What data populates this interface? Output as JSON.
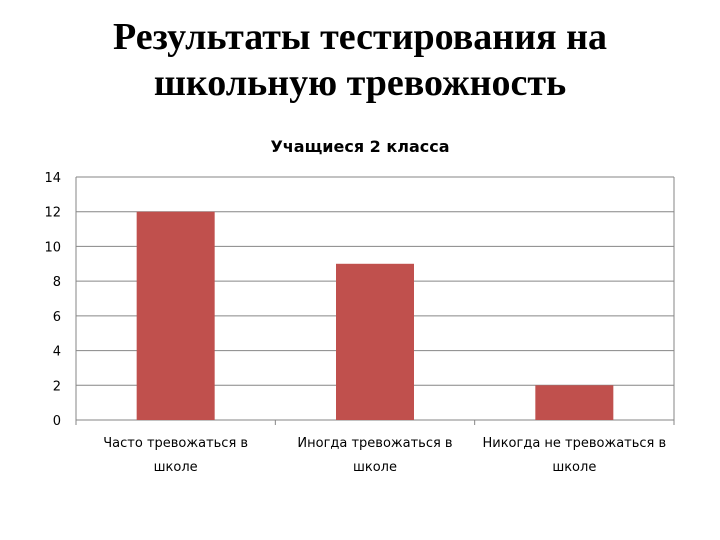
{
  "slide": {
    "title_line1": "Результаты тестирования на",
    "title_line2": "школьную тревожность"
  },
  "chart_data": {
    "type": "bar",
    "title": "Учащиеся 2 класса",
    "categories": [
      [
        "Часто тревожаться в",
        "школе"
      ],
      [
        "Иногда тревожаться в",
        "школе"
      ],
      [
        "Никогда не тревожаться в",
        "школе"
      ]
    ],
    "values": [
      12,
      9,
      2
    ],
    "ylim": [
      0,
      14
    ],
    "yticks": [
      0,
      2,
      4,
      6,
      8,
      10,
      12,
      14
    ],
    "grid": true,
    "legend": "none",
    "bar_color": "#C0504D",
    "grid_color": "#868686"
  }
}
